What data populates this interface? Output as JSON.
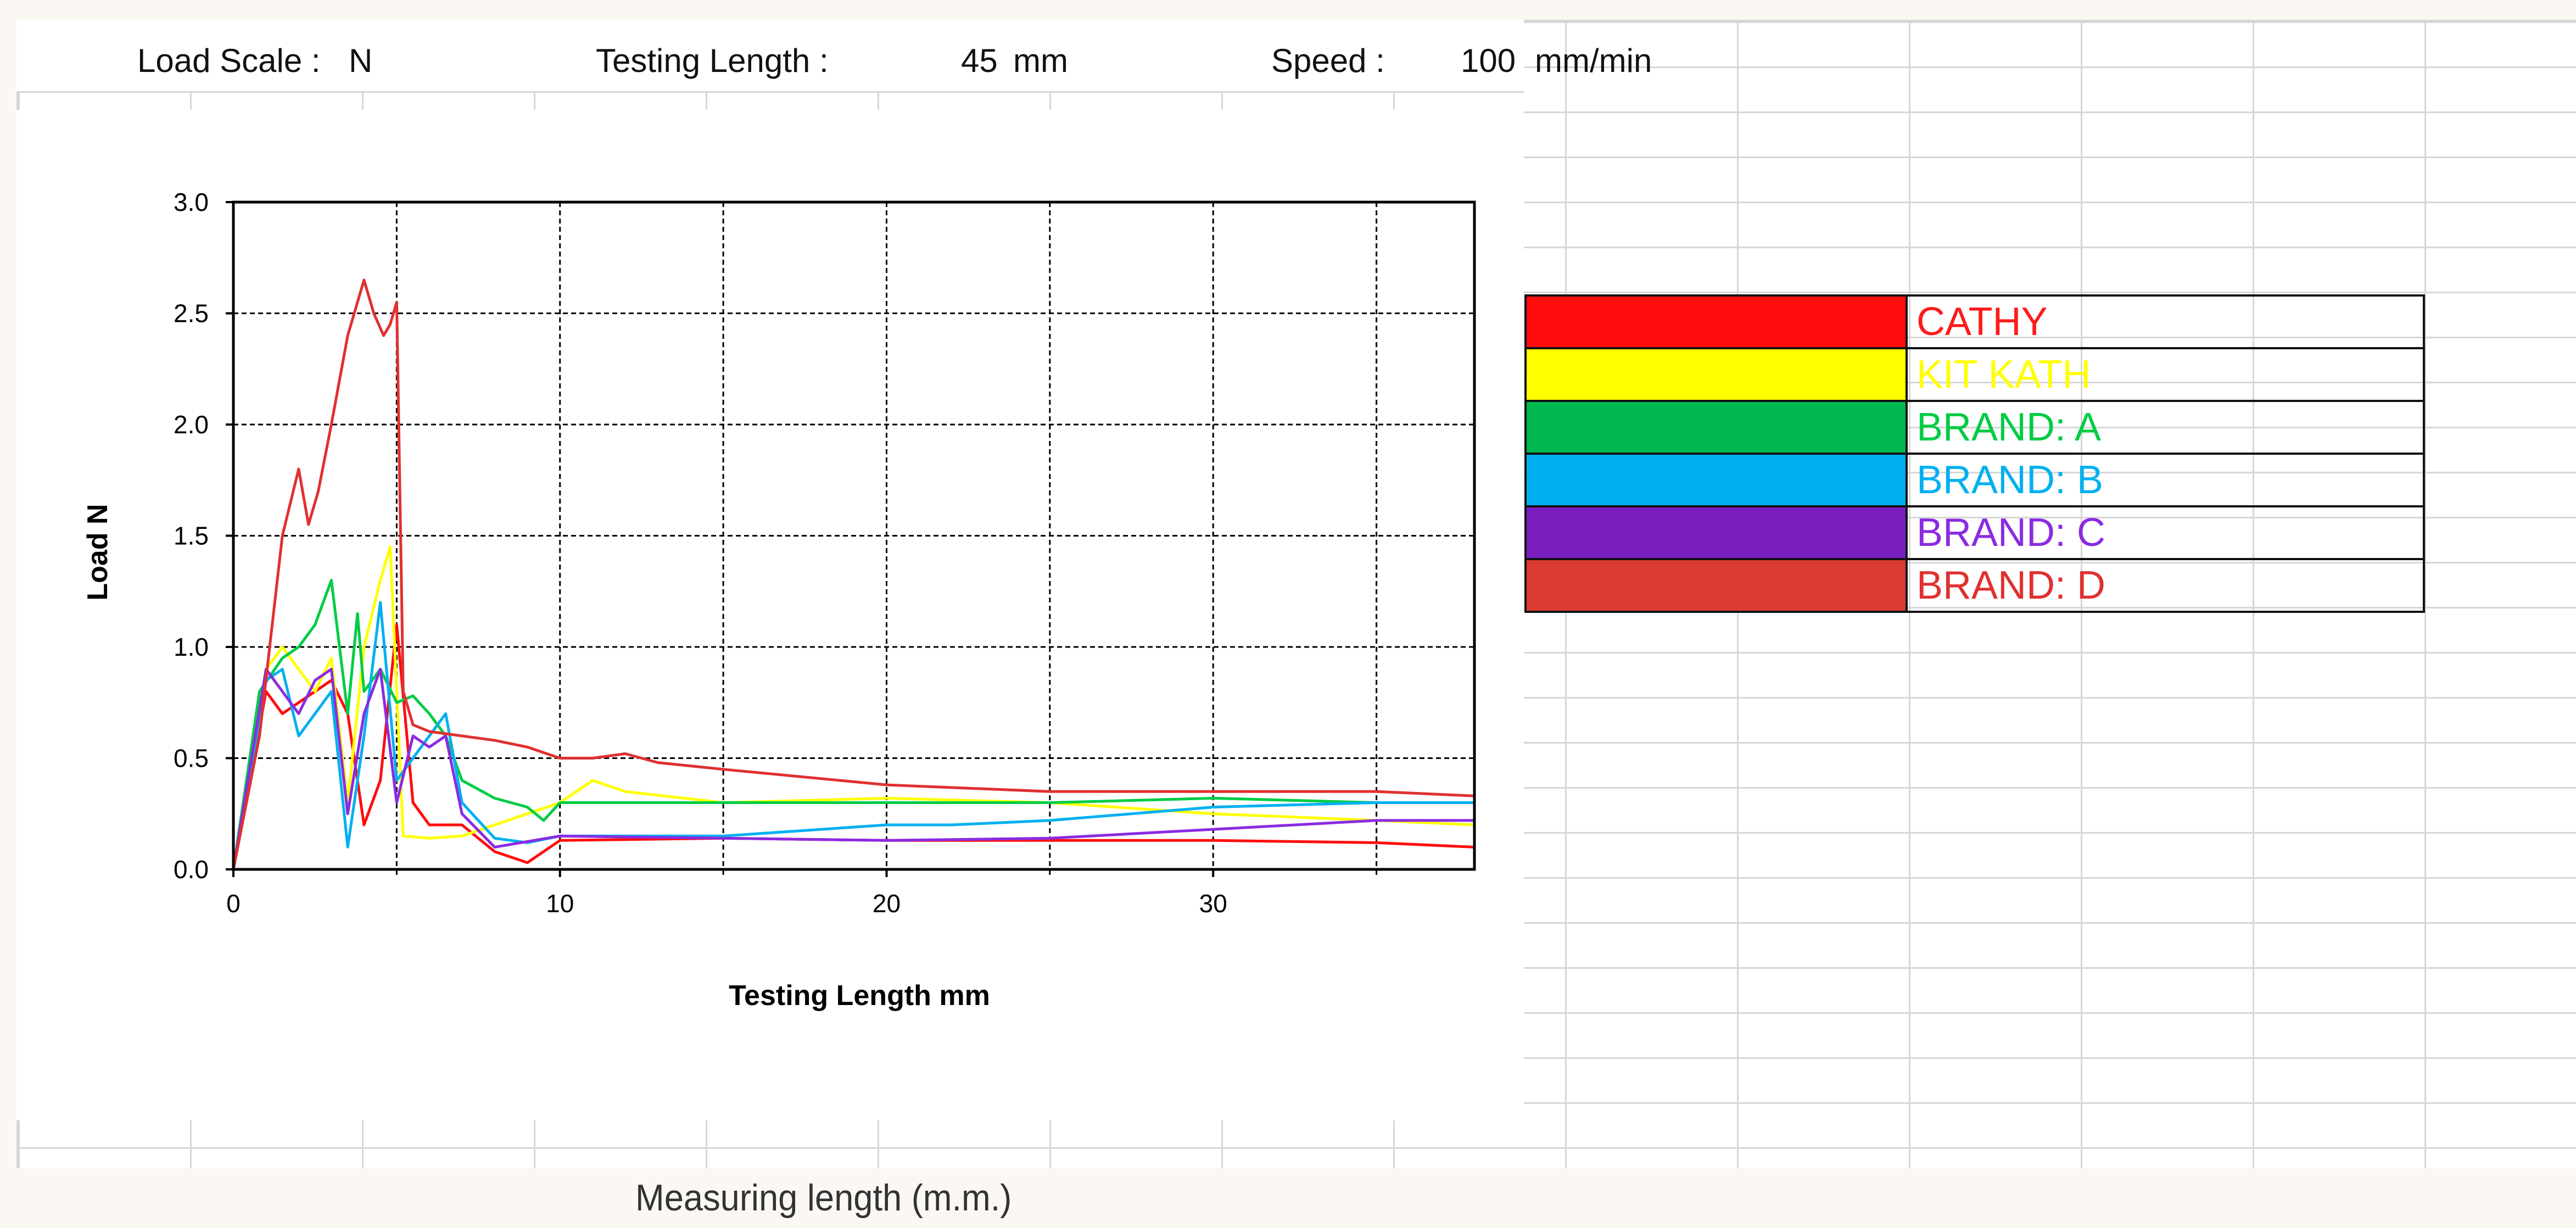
{
  "header": {
    "load_scale_label": "Load Scale :",
    "load_scale_value": "N",
    "testing_length_label": "Testing Length :",
    "testing_length_value": "45",
    "testing_length_unit": "mm",
    "speed_label": "Speed :",
    "speed_value": "100",
    "speed_unit": "mm/min"
  },
  "legend": [
    {
      "label": "CATHY",
      "color": "#ff0d0d",
      "text_color": "#ff1a1a"
    },
    {
      "label": "KIT KATH",
      "color": "#ffff00",
      "text_color": "#ffff00"
    },
    {
      "label": "BRAND: A",
      "color": "#00b850",
      "text_color": "#00cc44"
    },
    {
      "label": "BRAND: B",
      "color": "#00b0f0",
      "text_color": "#00b0f0"
    },
    {
      "label": "BRAND: C",
      "color": "#7a1ec0",
      "text_color": "#8a2be2"
    },
    {
      "label": "BRAND: D",
      "color": "#db3b33",
      "text_color": "#e03030"
    }
  ],
  "caption": "Measuring length (m.m.)",
  "chart_data": {
    "type": "line",
    "title": "",
    "xlabel": "Testing Length  mm",
    "ylabel": "Load N",
    "xlim": [
      0,
      38
    ],
    "ylim": [
      0,
      3.0
    ],
    "x_ticks": [
      "0",
      "10",
      "20",
      "30"
    ],
    "y_ticks": [
      "0.0",
      "0.5",
      "1.0",
      "1.5",
      "2.0",
      "2.5",
      "3.0"
    ],
    "grid": "dashed",
    "legend": "right",
    "series": [
      {
        "name": "CATHY",
        "color": "#ff0d0d",
        "x": [
          0,
          1,
          1.5,
          2,
          3,
          3.5,
          4,
          4.5,
          5,
          5.5,
          6,
          7,
          8,
          9,
          10,
          15,
          20,
          25,
          30,
          35,
          38
        ],
        "y": [
          0,
          0.8,
          0.7,
          0.75,
          0.85,
          0.7,
          0.2,
          0.4,
          1.1,
          0.3,
          0.2,
          0.2,
          0.08,
          0.03,
          0.13,
          0.14,
          0.13,
          0.13,
          0.13,
          0.12,
          0.1
        ]
      },
      {
        "name": "KIT KATH",
        "color": "#ffff00",
        "x": [
          0,
          1,
          1.5,
          2,
          2.5,
          3,
          3.5,
          4,
          4.5,
          4.8,
          5.2,
          6,
          7,
          8,
          9,
          10,
          11,
          12,
          15,
          20,
          25,
          30,
          35,
          38
        ],
        "y": [
          0,
          0.9,
          1.0,
          0.9,
          0.8,
          0.95,
          0.3,
          1.0,
          1.3,
          1.45,
          0.15,
          0.14,
          0.15,
          0.2,
          0.25,
          0.3,
          0.4,
          0.35,
          0.3,
          0.32,
          0.3,
          0.25,
          0.22,
          0.2
        ]
      },
      {
        "name": "BRAND: A",
        "color": "#00cc44",
        "x": [
          0,
          0.8,
          1.5,
          2,
          2.5,
          3,
          3.5,
          3.8,
          4,
          4.5,
          5,
          5.5,
          6,
          6.5,
          7,
          8,
          9,
          9.5,
          10,
          15,
          20,
          25,
          30,
          35,
          38
        ],
        "y": [
          0,
          0.8,
          0.95,
          1.0,
          1.1,
          1.3,
          0.7,
          1.15,
          0.8,
          0.9,
          0.75,
          0.78,
          0.7,
          0.6,
          0.4,
          0.32,
          0.28,
          0.22,
          0.3,
          0.3,
          0.3,
          0.3,
          0.32,
          0.3,
          0.3
        ]
      },
      {
        "name": "BRAND: B",
        "color": "#00b0f0",
        "x": [
          0,
          1,
          1.5,
          2,
          2.5,
          3,
          3.5,
          4,
          4.5,
          5,
          5.5,
          6,
          6.5,
          7,
          8,
          9,
          10,
          15,
          20,
          22,
          25,
          30,
          35,
          38
        ],
        "y": [
          0,
          0.85,
          0.9,
          0.6,
          0.7,
          0.8,
          0.1,
          0.6,
          1.2,
          0.4,
          0.5,
          0.6,
          0.7,
          0.3,
          0.14,
          0.12,
          0.15,
          0.15,
          0.2,
          0.2,
          0.22,
          0.28,
          0.3,
          0.3
        ]
      },
      {
        "name": "BRAND: C",
        "color": "#8a2be2",
        "x": [
          0,
          1,
          1.5,
          2,
          2.5,
          3,
          3.5,
          4,
          4.5,
          5,
          5.5,
          6,
          6.5,
          7,
          8,
          10,
          15,
          20,
          25,
          30,
          35,
          38
        ],
        "y": [
          0,
          0.9,
          0.8,
          0.7,
          0.85,
          0.9,
          0.25,
          0.7,
          0.9,
          0.3,
          0.6,
          0.55,
          0.6,
          0.25,
          0.1,
          0.15,
          0.14,
          0.13,
          0.14,
          0.18,
          0.22,
          0.22
        ]
      },
      {
        "name": "BRAND: D",
        "color": "#e03030",
        "x": [
          0,
          0.8,
          1.5,
          2,
          2.3,
          2.6,
          3,
          3.5,
          4,
          4.3,
          4.6,
          4.8,
          5,
          5.2,
          5.5,
          6,
          7,
          8,
          9,
          10,
          11,
          12,
          13,
          15,
          20,
          25,
          30,
          35,
          38
        ],
        "y": [
          0,
          0.6,
          1.5,
          1.8,
          1.55,
          1.7,
          2.0,
          2.4,
          2.65,
          2.5,
          2.4,
          2.45,
          2.55,
          0.8,
          0.65,
          0.62,
          0.6,
          0.58,
          0.55,
          0.5,
          0.5,
          0.52,
          0.48,
          0.45,
          0.38,
          0.35,
          0.35,
          0.35,
          0.33
        ]
      }
    ]
  }
}
